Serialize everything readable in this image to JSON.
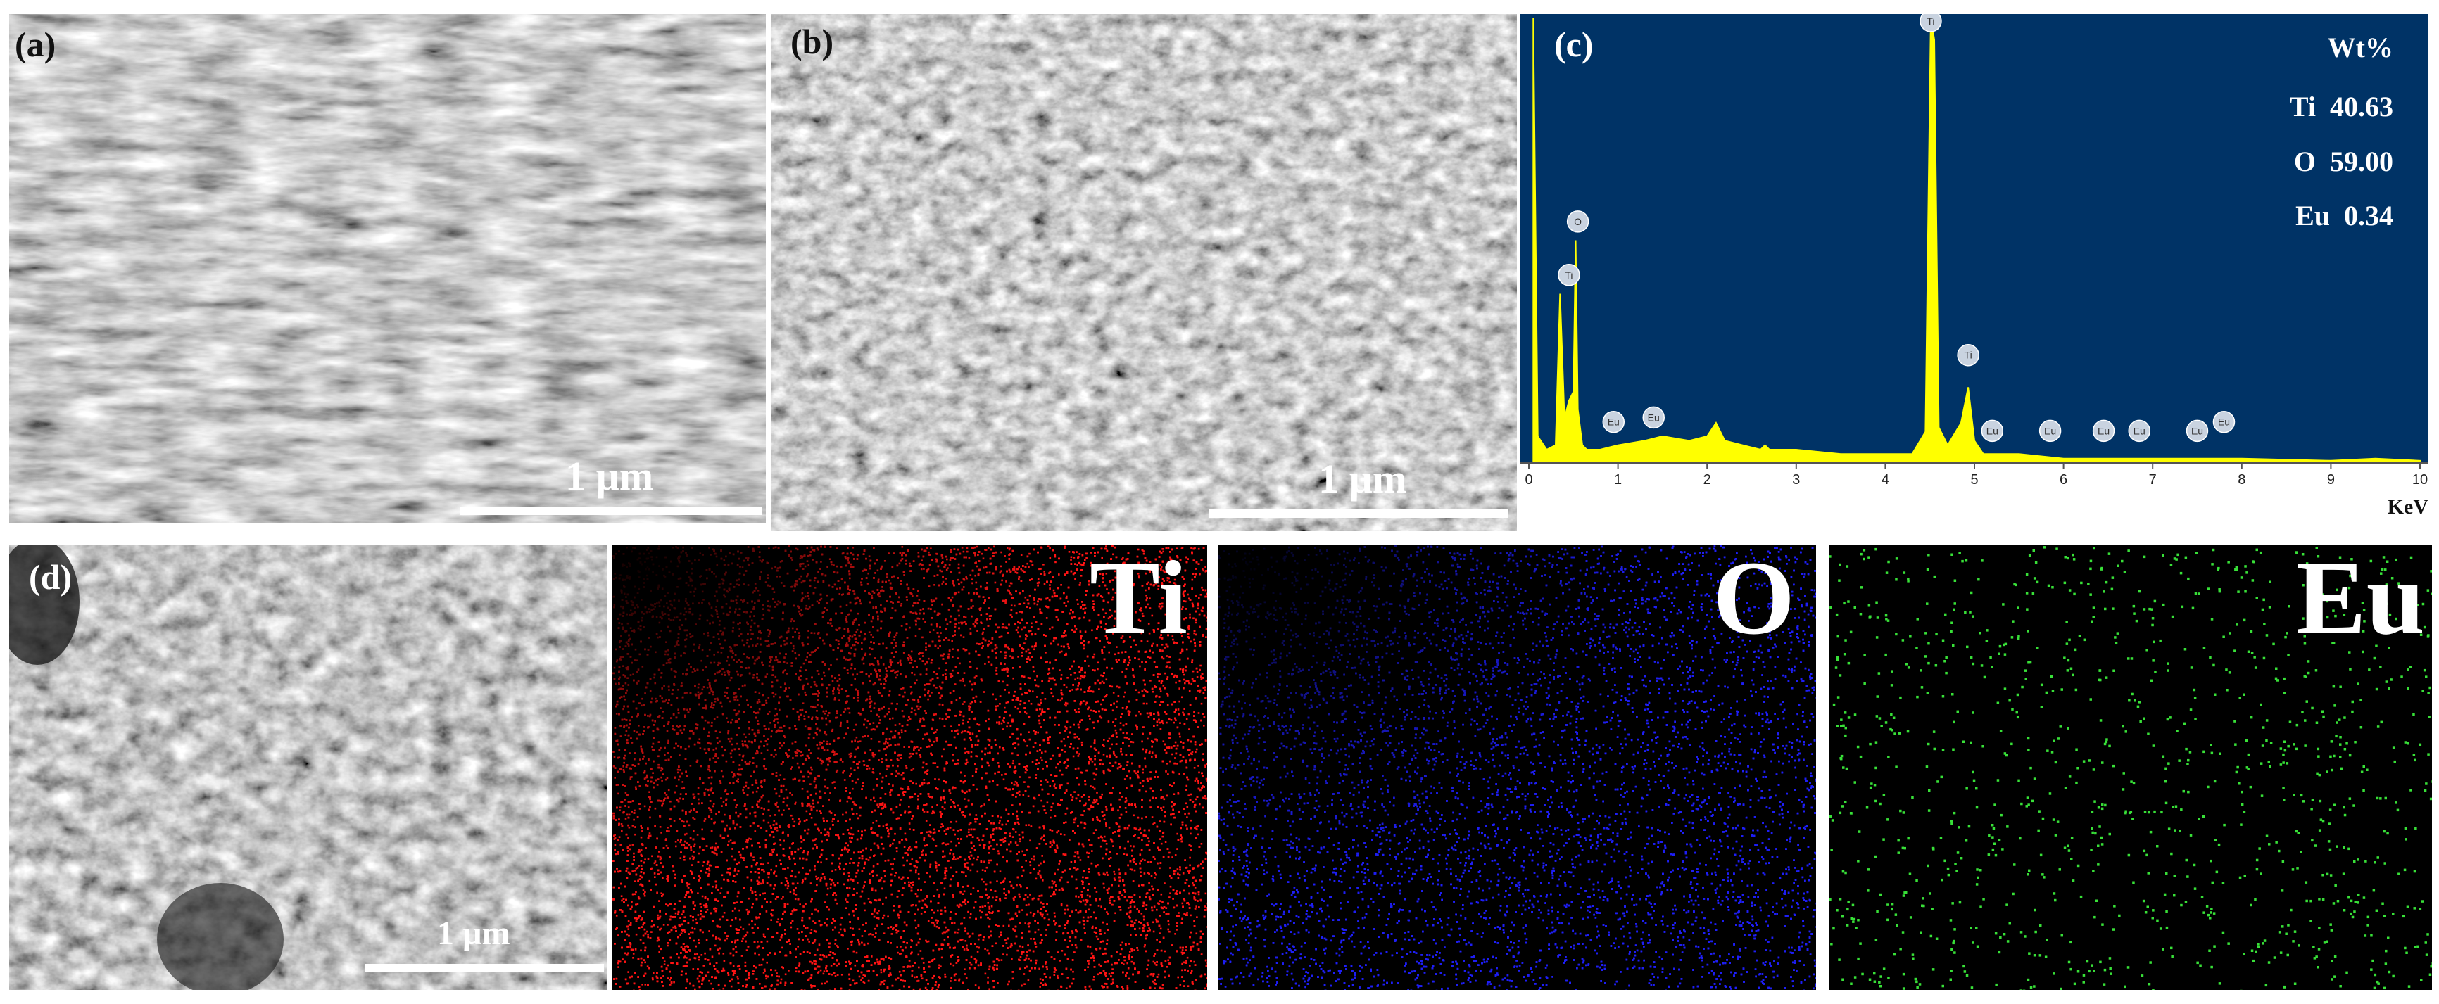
{
  "panels": {
    "a": {
      "label": "(a)",
      "scale": "1 µm"
    },
    "b": {
      "label": "(b)",
      "scale": "1 µm"
    },
    "c": {
      "label": "(c)"
    },
    "d": {
      "label": "(d)",
      "scale": "1 µm"
    }
  },
  "maps": {
    "ti": {
      "title": "Ti",
      "color": "#ff1414"
    },
    "o": {
      "title": "O",
      "color": "#1e1ef5"
    },
    "eu": {
      "title": "Eu",
      "color": "#38e038"
    }
  },
  "composition": {
    "header": "Wt%",
    "rows": [
      {
        "element": "Ti",
        "value": "40.63"
      },
      {
        "element": "O",
        "value": "59.00"
      },
      {
        "element": "Eu",
        "value": "0.34"
      }
    ]
  },
  "chart_data": {
    "type": "line",
    "title": "",
    "xlabel": "KeV",
    "ylabel": "",
    "xlim": [
      0,
      10
    ],
    "ylim": [
      0,
      100
    ],
    "x_ticks": [
      "0",
      "1",
      "2",
      "3",
      "4",
      "5",
      "6",
      "7",
      "8",
      "9",
      "10"
    ],
    "grid": false,
    "background": "#003366",
    "series_color": "#ffff00",
    "series": [
      {
        "x": [
          0.05,
          0.1,
          0.2,
          0.3,
          0.35,
          0.4,
          0.45,
          0.5,
          0.525,
          0.55,
          0.6,
          0.65,
          0.7,
          0.8,
          1.0,
          1.3,
          1.5,
          1.8,
          2.0,
          2.1,
          2.2,
          2.4,
          2.6,
          2.65,
          2.7,
          3.0,
          3.5,
          4.0,
          4.3,
          4.45,
          4.51,
          4.55,
          4.6,
          4.7,
          4.85,
          4.93,
          5.0,
          5.1,
          5.5,
          6.0,
          7.0,
          8.0,
          9.0,
          9.5,
          10.0
        ],
        "y": [
          100,
          6,
          3,
          4,
          38,
          10,
          14,
          16,
          50,
          12,
          4,
          3,
          3,
          3,
          4,
          5,
          6,
          5,
          6,
          9,
          5,
          4,
          3,
          4,
          3,
          3,
          2,
          2,
          2,
          7,
          100,
          95,
          8,
          4,
          9,
          17,
          5,
          2,
          2,
          1,
          1,
          1,
          0.5,
          1,
          0.5
        ]
      }
    ],
    "peak_labels": [
      {
        "element": "Ti",
        "x": 0.45,
        "y": 40
      },
      {
        "element": "O",
        "x": 0.55,
        "y": 52
      },
      {
        "element": "Eu",
        "x": 0.95,
        "y": 7
      },
      {
        "element": "Eu",
        "x": 1.4,
        "y": 8
      },
      {
        "element": "Ti",
        "x": 4.51,
        "y": 97
      },
      {
        "element": "Ti",
        "x": 4.93,
        "y": 22
      },
      {
        "element": "Eu",
        "x": 5.2,
        "y": 5
      },
      {
        "element": "Eu",
        "x": 5.85,
        "y": 5
      },
      {
        "element": "Eu",
        "x": 6.45,
        "y": 5
      },
      {
        "element": "Eu",
        "x": 6.85,
        "y": 5
      },
      {
        "element": "Eu",
        "x": 7.5,
        "y": 5
      },
      {
        "element": "Eu",
        "x": 7.8,
        "y": 7
      }
    ]
  }
}
